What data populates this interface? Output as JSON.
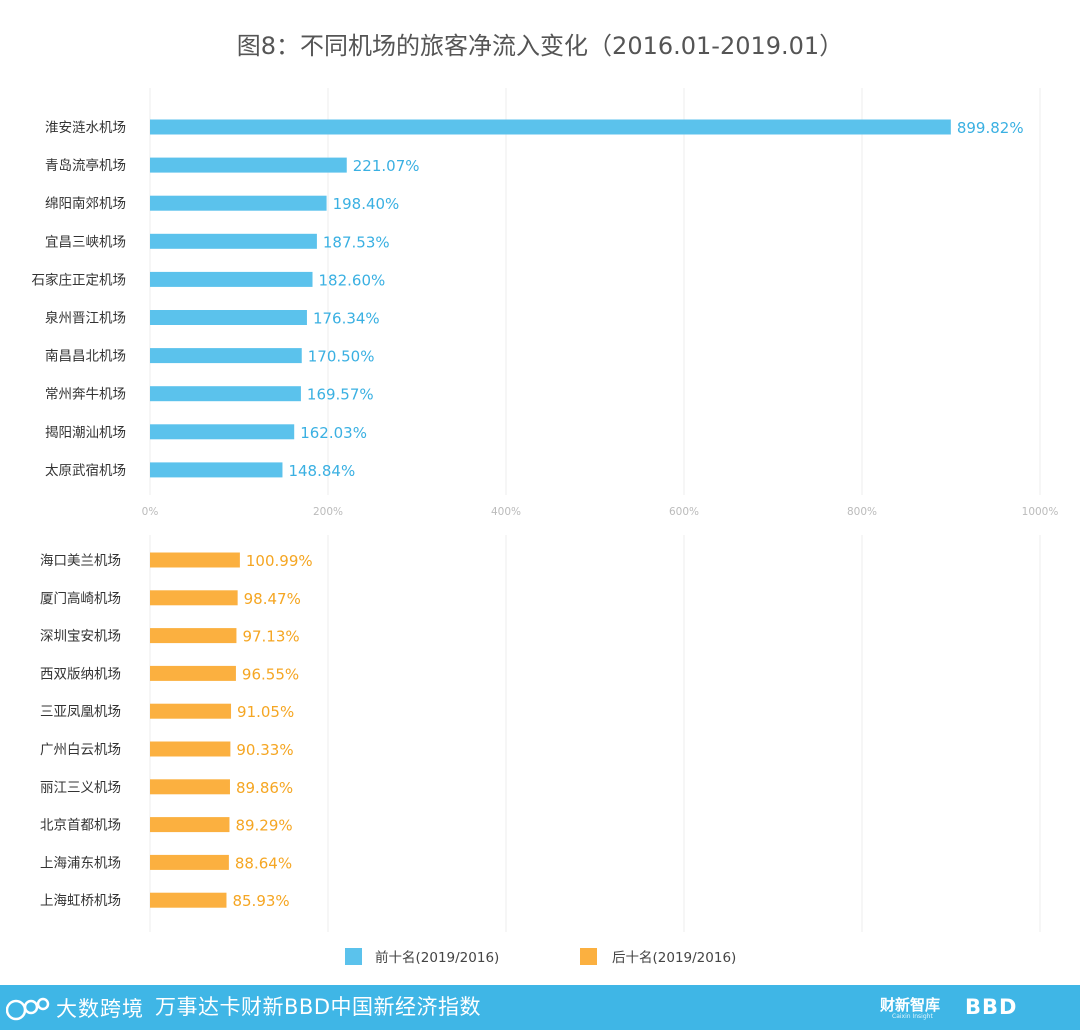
{
  "title": "图8：不同机场的旅客净流入变化（2016.01-2019.01）",
  "chart_data": [
    {
      "type": "bar",
      "orientation": "horizontal",
      "series_name": "前十名(2019/2016)",
      "color": "#5bc2ec",
      "label_color": "#3ab0e2",
      "categories": [
        "淮安涟水机场",
        "青岛流亭机场",
        "绵阳南郊机场",
        "宜昌三峡机场",
        "石家庄正定机场",
        "泉州晋江机场",
        "南昌昌北机场",
        "常州奔牛机场",
        "揭阳潮汕机场",
        "太原武宿机场"
      ],
      "values": [
        899.82,
        221.07,
        198.4,
        187.53,
        182.6,
        176.34,
        170.5,
        169.57,
        162.03,
        148.84
      ],
      "data_labels": [
        "899.82%",
        "221.07%",
        "198.40%",
        "187.53%",
        "182.60%",
        "176.34%",
        "170.50%",
        "169.57%",
        "162.03%",
        "148.84%"
      ],
      "xlim": [
        0,
        1000
      ],
      "ticks": [
        "0%",
        "200%",
        "400%",
        "600%",
        "800%",
        "1000%"
      ],
      "grid": true
    },
    {
      "type": "bar",
      "orientation": "horizontal",
      "series_name": "后十名(2019/2016)",
      "color": "#fbb040",
      "label_color": "#f5a623",
      "categories": [
        "海口美兰机场",
        "厦门高崎机场",
        "深圳宝安机场",
        "西双版纳机场",
        "三亚凤凰机场",
        "广州白云机场",
        "丽江三义机场",
        "北京首都机场",
        "上海浦东机场",
        "上海虹桥机场"
      ],
      "values": [
        100.99,
        98.47,
        97.13,
        96.55,
        91.05,
        90.33,
        89.86,
        89.29,
        88.64,
        85.93
      ],
      "data_labels": [
        "100.99%",
        "98.47%",
        "97.13%",
        "96.55%",
        "91.05%",
        "90.33%",
        "89.86%",
        "89.29%",
        "88.64%",
        "85.93%"
      ],
      "xlim": [
        0,
        1000
      ],
      "grid": true
    }
  ],
  "legend": [
    {
      "label": "前十名(2019/2016)",
      "color": "#5bc2ec"
    },
    {
      "label": "后十名(2019/2016)",
      "color": "#fbb040"
    }
  ],
  "footer": {
    "logo_text": "大数跨境",
    "title": "万事达卡财新BBD中国新经济指数",
    "brand1": "财新智库",
    "brand1_sub": "Caixin Insight",
    "brand2": "BBD"
  }
}
